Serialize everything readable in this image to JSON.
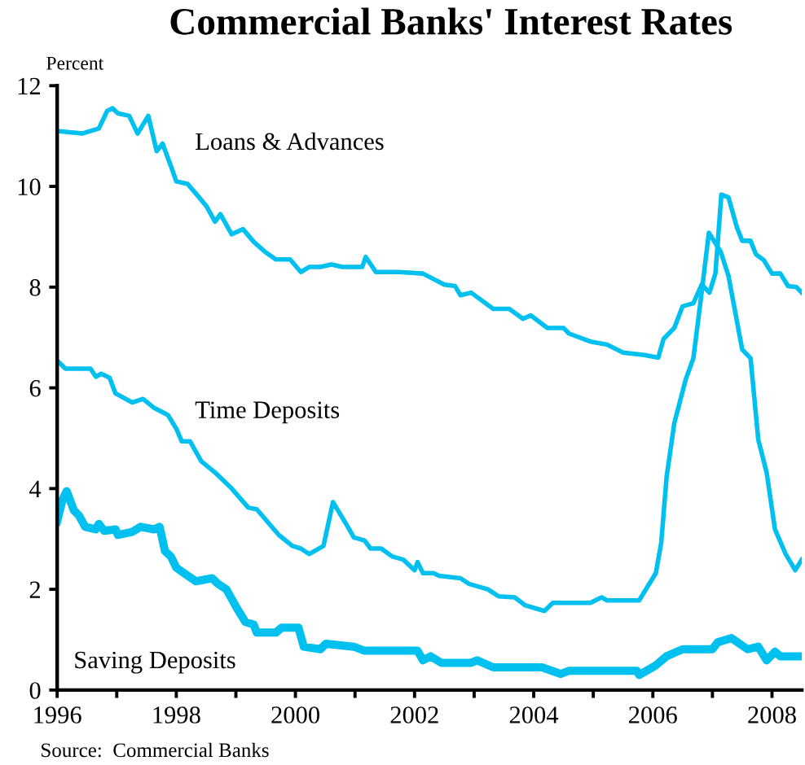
{
  "chart_data": {
    "type": "line",
    "title": "Commercial Banks' Interest Rates",
    "ylabel": "Percent",
    "annotations": [
      "Source:  Commercial Banks"
    ],
    "xlim": [
      1996,
      2008.5
    ],
    "ylim": [
      0,
      12
    ],
    "yticks": [
      0,
      2,
      4,
      6,
      8,
      10,
      12
    ],
    "xticks": [
      1996,
      {
        "value": 1997,
        "label": null
      },
      1998,
      {
        "value": 1999,
        "label": null
      },
      2000,
      {
        "value": 2001,
        "label": null
      },
      2002,
      {
        "value": 2003,
        "label": null
      },
      2004,
      {
        "value": 2005,
        "label": null
      },
      2006,
      {
        "value": 2007,
        "label": null
      },
      2008
    ],
    "grid": false,
    "legend": false,
    "marker": "none",
    "line_style": "solid",
    "series": [
      {
        "name": "Loans & Advances",
        "color": "#00c0f0",
        "x": [
          1996,
          1996.42,
          1996.7,
          1996.84,
          1996.93,
          1997.02,
          1997.21,
          1997.35,
          1997.53,
          1997.67,
          1997.77,
          1997.91,
          1998,
          1998.19,
          1998.37,
          1998.51,
          1998.65,
          1998.74,
          1998.93,
          1999.12,
          1999.3,
          1999.49,
          1999.67,
          1999.91,
          2000.09,
          2000.23,
          2000.42,
          2000.6,
          2000.79,
          2001.12,
          2001.18,
          2001.35,
          2001.72,
          2002.14,
          2002.5,
          2002.68,
          2002.77,
          2002.95,
          2003.32,
          2003.59,
          2003.82,
          2003.95,
          2004.23,
          2004.5,
          2004.59,
          2004.95,
          2005.23,
          2005.5,
          2005.86,
          2006.09,
          2006.18,
          2006.36,
          2006.5,
          2006.68,
          2006.82,
          2006.95,
          2007.05,
          2007.15,
          2007.27,
          2007.41,
          2007.5,
          2007.64,
          2007.73,
          2007.86,
          2008,
          2008.14,
          2008.27,
          2008.41,
          2008.5
        ],
        "values": [
          11.1,
          11.05,
          11.15,
          11.5,
          11.55,
          11.45,
          11.4,
          11.05,
          11.4,
          10.7,
          10.85,
          10.4,
          10.1,
          10.05,
          9.8,
          9.6,
          9.3,
          9.45,
          9.05,
          9.15,
          8.9,
          8.7,
          8.55,
          8.55,
          8.3,
          8.4,
          8.4,
          8.45,
          8.4,
          8.4,
          8.6,
          8.3,
          8.3,
          8.27,
          8.05,
          8.02,
          7.84,
          7.89,
          7.57,
          7.57,
          7.37,
          7.44,
          7.19,
          7.19,
          7.08,
          6.92,
          6.86,
          6.7,
          6.65,
          6.6,
          6.97,
          7.19,
          7.62,
          7.68,
          8.05,
          7.89,
          8.27,
          9.84,
          9.78,
          9.19,
          8.92,
          8.92,
          8.65,
          8.54,
          8.27,
          8.27,
          8.02,
          8,
          7.89
        ]
      },
      {
        "name": "Time Deposits",
        "color": "#00c0f0",
        "x": [
          1996,
          1996.14,
          1996.56,
          1996.65,
          1996.74,
          1996.88,
          1996.98,
          1997.26,
          1997.44,
          1997.63,
          1997.86,
          1998,
          1998.09,
          1998.23,
          1998.42,
          1998.65,
          1998.93,
          1999.21,
          1999.35,
          1999.72,
          1999.95,
          2000.09,
          2000.23,
          2000.47,
          2000.63,
          2000.88,
          2000.98,
          2001.16,
          2001.26,
          2001.44,
          2001.63,
          2001.81,
          2002,
          2002.05,
          2002.14,
          2002.32,
          2002.41,
          2002.77,
          2002.91,
          2003.23,
          2003.41,
          2003.68,
          2003.86,
          2004.18,
          2004.32,
          2004.95,
          2005.14,
          2005.23,
          2005.77,
          2006.05,
          2006.14,
          2006.23,
          2006.36,
          2006.55,
          2006.68,
          2006.82,
          2006.94,
          2007.14,
          2007.27,
          2007.5,
          2007.64,
          2007.77,
          2007.91,
          2008.05,
          2008.23,
          2008.39,
          2008.5
        ],
        "values": [
          6.54,
          6.38,
          6.38,
          6.22,
          6.28,
          6.2,
          5.89,
          5.71,
          5.78,
          5.6,
          5.46,
          5.19,
          4.94,
          4.94,
          4.54,
          4.32,
          4,
          3.62,
          3.59,
          3.08,
          2.86,
          2.81,
          2.7,
          2.86,
          3.73,
          3.24,
          3.03,
          2.97,
          2.81,
          2.81,
          2.65,
          2.59,
          2.38,
          2.54,
          2.32,
          2.32,
          2.27,
          2.22,
          2.11,
          2,
          1.86,
          1.84,
          1.68,
          1.57,
          1.73,
          1.73,
          1.84,
          1.78,
          1.78,
          2.32,
          2.92,
          4.22,
          5.3,
          6.16,
          6.59,
          7.9,
          9.08,
          8.7,
          8.22,
          6.76,
          6.59,
          4.97,
          4.32,
          3.19,
          2.7,
          2.38,
          2.59
        ]
      },
      {
        "name": "Saving Deposits",
        "color": "#00c0f0",
        "x": [
          1996,
          1996.09,
          1996.16,
          1996.28,
          1996.37,
          1996.47,
          1996.65,
          1996.7,
          1996.79,
          1996.98,
          1997.02,
          1997.26,
          1997.4,
          1997.63,
          1997.72,
          1997.81,
          1997.91,
          1998,
          1998.19,
          1998.33,
          1998.6,
          1998.7,
          1998.84,
          1999.02,
          1999.16,
          1999.3,
          1999.35,
          1999.67,
          1999.77,
          2000.05,
          2000.14,
          2000.42,
          2000.51,
          2000.98,
          2001.16,
          2001.72,
          2002.05,
          2002.14,
          2002.27,
          2002.45,
          2002.95,
          2003.05,
          2003.32,
          2004.14,
          2004.45,
          2004.59,
          2004.77,
          2005.73,
          2005.77,
          2006.05,
          2006.23,
          2006.5,
          2007,
          2007.09,
          2007.32,
          2007.59,
          2007.77,
          2007.91,
          2008.05,
          2008.14,
          2008.5
        ],
        "values": [
          3.35,
          3.78,
          3.95,
          3.57,
          3.46,
          3.24,
          3.19,
          3.3,
          3.16,
          3.19,
          3.08,
          3.14,
          3.24,
          3.19,
          3.24,
          2.76,
          2.65,
          2.43,
          2.27,
          2.16,
          2.22,
          2.11,
          2,
          1.62,
          1.35,
          1.3,
          1.14,
          1.14,
          1.24,
          1.24,
          0.86,
          0.81,
          0.92,
          0.86,
          0.78,
          0.78,
          0.78,
          0.59,
          0.67,
          0.54,
          0.54,
          0.59,
          0.45,
          0.45,
          0.32,
          0.38,
          0.38,
          0.38,
          0.3,
          0.49,
          0.67,
          0.81,
          0.81,
          0.95,
          1.03,
          0.81,
          0.86,
          0.59,
          0.76,
          0.67,
          0.67
        ]
      }
    ]
  }
}
